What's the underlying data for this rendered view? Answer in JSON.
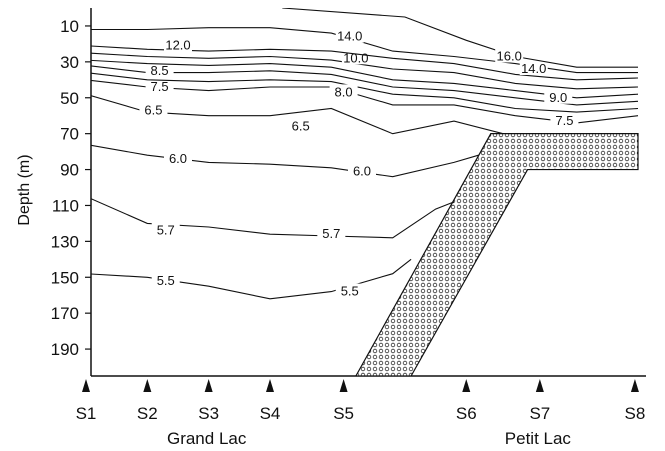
{
  "chart_data": {
    "type": "contour",
    "ylabel": "Depth (m)",
    "y_ticks": [
      10,
      30,
      50,
      70,
      90,
      110,
      130,
      150,
      170,
      190
    ],
    "ylim": [
      0,
      205
    ],
    "y_inverted": true,
    "stations": [
      {
        "label": "S1",
        "pos": 0.0
      },
      {
        "label": "S2",
        "pos": 1.0
      },
      {
        "label": "S3",
        "pos": 2.0
      },
      {
        "label": "S4",
        "pos": 3.0
      },
      {
        "label": "S5",
        "pos": 4.2
      },
      {
        "label": "S6",
        "pos": 6.2
      },
      {
        "label": "S7",
        "pos": 7.4
      },
      {
        "label": "S8",
        "pos": 8.95
      }
    ],
    "basins": [
      {
        "label": "Grand Lac",
        "pos": 2.0
      },
      {
        "label": "Petit Lac",
        "pos": 7.4
      }
    ],
    "bottom_profile": [
      [
        4.4,
        205
      ],
      [
        6.6,
        70
      ],
      [
        9.0,
        70
      ],
      [
        9.0,
        90
      ],
      [
        7.2,
        90
      ],
      [
        5.3,
        205
      ]
    ],
    "isotherms": [
      {
        "value": "5.5",
        "points": [
          [
            0,
            148
          ],
          [
            1,
            150
          ],
          [
            2,
            155
          ],
          [
            3,
            162
          ],
          [
            4,
            158
          ],
          [
            5,
            148
          ],
          [
            5.3,
            140
          ]
        ],
        "labels": [
          [
            1.3,
            152
          ],
          [
            4.3,
            158
          ]
        ]
      },
      {
        "value": "5.7",
        "points": [
          [
            0,
            105
          ],
          [
            1,
            120
          ],
          [
            2,
            122
          ],
          [
            3,
            126
          ],
          [
            4,
            127
          ],
          [
            5,
            128
          ],
          [
            5.7,
            112
          ],
          [
            6.0,
            108
          ]
        ],
        "labels": [
          [
            1.3,
            124
          ],
          [
            4.0,
            126
          ]
        ]
      },
      {
        "value": "6.0",
        "points": [
          [
            0,
            76
          ],
          [
            1,
            82
          ],
          [
            2,
            86
          ],
          [
            3,
            87
          ],
          [
            4,
            89
          ],
          [
            5,
            94
          ],
          [
            6,
            86
          ],
          [
            6.4,
            82
          ]
        ],
        "labels": [
          [
            1.5,
            84
          ],
          [
            4.5,
            91
          ]
        ]
      },
      {
        "value": "6.5",
        "points": [
          [
            0,
            48
          ],
          [
            1,
            58
          ],
          [
            2,
            60
          ],
          [
            3,
            60
          ],
          [
            4,
            56
          ],
          [
            5,
            70
          ],
          [
            6,
            63
          ],
          [
            6.8,
            70
          ]
        ],
        "labels": [
          [
            1.1,
            57
          ],
          [
            3.5,
            66
          ]
        ]
      },
      {
        "value": "7.5",
        "points": [
          [
            0,
            40
          ],
          [
            1,
            44
          ],
          [
            2,
            46
          ],
          [
            3,
            44
          ],
          [
            4,
            44
          ],
          [
            5,
            54
          ],
          [
            6,
            54
          ],
          [
            7,
            60
          ],
          [
            8,
            64
          ],
          [
            9,
            60
          ]
        ],
        "labels": [
          [
            1.2,
            44
          ],
          [
            7.8,
            63
          ]
        ]
      },
      {
        "value": "8.0",
        "points": [
          [
            0,
            36
          ],
          [
            1,
            40
          ],
          [
            2,
            41
          ],
          [
            3,
            40
          ],
          [
            4,
            41
          ],
          [
            5,
            48
          ],
          [
            6,
            50
          ],
          [
            7,
            56
          ],
          [
            8,
            58
          ],
          [
            9,
            56
          ]
        ],
        "labels": [
          [
            4.2,
            47
          ]
        ]
      },
      {
        "value": "8.5",
        "points": [
          [
            0,
            32
          ],
          [
            1,
            36
          ],
          [
            2,
            36
          ],
          [
            3,
            35
          ],
          [
            4,
            37
          ],
          [
            5,
            44
          ],
          [
            6,
            46
          ],
          [
            7,
            50
          ],
          [
            8,
            54
          ],
          [
            9,
            52
          ]
        ],
        "labels": [
          [
            1.2,
            35
          ]
        ]
      },
      {
        "value": "9.0",
        "points": [
          [
            0,
            29
          ],
          [
            1,
            31
          ],
          [
            2,
            32
          ],
          [
            3,
            31
          ],
          [
            4,
            33
          ],
          [
            5,
            40
          ],
          [
            6,
            42
          ],
          [
            7,
            46
          ],
          [
            8,
            50
          ],
          [
            9,
            48
          ]
        ],
        "labels": [
          [
            7.7,
            50
          ]
        ]
      },
      {
        "value": "10.0",
        "points": [
          [
            0,
            25
          ],
          [
            1,
            27
          ],
          [
            2,
            28
          ],
          [
            3,
            27
          ],
          [
            4,
            29
          ],
          [
            5,
            34
          ],
          [
            6,
            36
          ],
          [
            7,
            42
          ],
          [
            8,
            45
          ],
          [
            9,
            44
          ]
        ],
        "labels": [
          [
            4.4,
            28
          ]
        ]
      },
      {
        "value": "12.0",
        "points": [
          [
            0,
            21
          ],
          [
            1,
            23
          ],
          [
            2,
            24
          ],
          [
            3,
            23
          ],
          [
            4,
            24
          ],
          [
            5,
            28
          ],
          [
            6,
            31
          ],
          [
            7,
            37
          ],
          [
            8,
            40
          ],
          [
            9,
            39
          ]
        ],
        "labels": [
          [
            1.5,
            21
          ]
        ]
      },
      {
        "value": "14.0",
        "points": [
          [
            0,
            12
          ],
          [
            1,
            12
          ],
          [
            2,
            11
          ],
          [
            3,
            11
          ],
          [
            4,
            14
          ],
          [
            5,
            24
          ],
          [
            6,
            27
          ],
          [
            7,
            31
          ],
          [
            8,
            36
          ],
          [
            9,
            36
          ]
        ],
        "labels": [
          [
            4.3,
            16
          ],
          [
            7.3,
            34
          ]
        ]
      },
      {
        "value": "16.0",
        "points": [
          [
            3.2,
            0
          ],
          [
            5.2,
            5
          ],
          [
            6.2,
            18
          ],
          [
            7.0,
            27
          ],
          [
            8.0,
            33
          ],
          [
            9.0,
            33
          ]
        ],
        "labels": [
          [
            6.9,
            27
          ]
        ]
      }
    ]
  }
}
